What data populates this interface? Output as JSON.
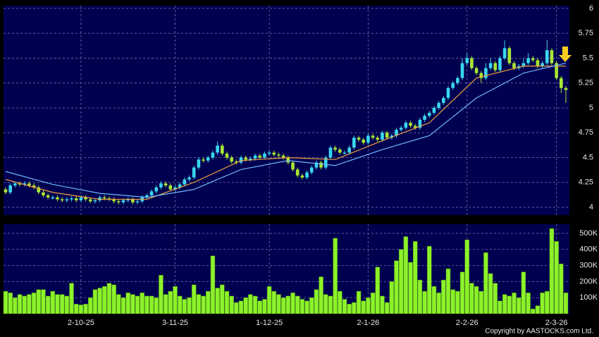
{
  "chart_data": {
    "type": "candlestick",
    "copyright": "Copyright by AASTOCKS.com Ltd.",
    "up_color": "#3ad7f0",
    "down_color": "#a8e832",
    "volume_color": "#8cf22a",
    "grid": true,
    "ylim": [
      4,
      6
    ],
    "yticks": [
      4,
      4.25,
      4.5,
      4.75,
      5,
      5.25,
      5.5,
      5.75,
      6
    ],
    "y2lim": [
      0,
      500000
    ],
    "y2ticks": [
      {
        "value": 100000,
        "label": "100K"
      },
      {
        "value": 200000,
        "label": "200K"
      },
      {
        "value": 300000,
        "label": "300K"
      },
      {
        "value": 400000,
        "label": "400K"
      },
      {
        "value": 500000,
        "label": "500K"
      }
    ],
    "xlim": [
      0,
      119
    ],
    "xticks": [
      {
        "value": 16,
        "label": "2-10-25"
      },
      {
        "value": 36,
        "label": "3-11-25"
      },
      {
        "value": 56,
        "label": "1-12-25"
      },
      {
        "value": 77,
        "label": "2-1-26"
      },
      {
        "value": 98,
        "label": "2-2-26"
      },
      {
        "value": 117,
        "label": "2-3-26"
      }
    ],
    "open": [
      4.18,
      4.15,
      4.22,
      4.24,
      4.23,
      4.24,
      4.22,
      4.2,
      4.15,
      4.12,
      4.1,
      4.1,
      4.08,
      4.07,
      4.08,
      4.09,
      4.07,
      4.1,
      4.08,
      4.06,
      4.07,
      4.1,
      4.09,
      4.08,
      4.06,
      4.05,
      4.07,
      4.08,
      4.05,
      4.06,
      4.1,
      4.12,
      4.16,
      4.2,
      4.24,
      4.22,
      4.18,
      4.2,
      4.23,
      4.28,
      4.3,
      4.4,
      4.48,
      4.47,
      4.5,
      4.55,
      4.62,
      4.54,
      4.5,
      4.46,
      4.45,
      4.5,
      4.48,
      4.49,
      4.52,
      4.5,
      4.54,
      4.55,
      4.53,
      4.52,
      4.5,
      4.45,
      4.38,
      4.32,
      4.3,
      4.35,
      4.4,
      4.45,
      4.4,
      4.5,
      4.6,
      4.58,
      4.55,
      4.55,
      4.6,
      4.7,
      4.68,
      4.65,
      4.72,
      4.7,
      4.68,
      4.75,
      4.7,
      4.72,
      4.78,
      4.8,
      4.85,
      4.82,
      4.8,
      4.88,
      4.92,
      4.95,
      5.0,
      5.05,
      5.1,
      5.2,
      5.25,
      5.3,
      5.45,
      5.5,
      5.4,
      5.35,
      5.3,
      5.4,
      5.45,
      5.38,
      5.5,
      5.6,
      5.45,
      5.4,
      5.42,
      5.45,
      5.5,
      5.48,
      5.42,
      5.45,
      5.58,
      5.45,
      5.3,
      5.2
    ],
    "high": [
      4.2,
      4.24,
      4.26,
      4.26,
      4.26,
      4.26,
      4.24,
      4.22,
      4.17,
      4.14,
      4.12,
      4.12,
      4.1,
      4.1,
      4.11,
      4.11,
      4.12,
      4.12,
      4.1,
      4.09,
      4.12,
      4.12,
      4.11,
      4.1,
      4.08,
      4.09,
      4.1,
      4.1,
      4.08,
      4.12,
      4.14,
      4.18,
      4.22,
      4.26,
      4.26,
      4.24,
      4.22,
      4.25,
      4.3,
      4.32,
      4.42,
      4.5,
      4.5,
      4.52,
      4.57,
      4.66,
      4.64,
      4.56,
      4.52,
      4.48,
      4.52,
      4.52,
      4.51,
      4.54,
      4.54,
      4.56,
      4.57,
      4.57,
      4.55,
      4.54,
      4.52,
      4.47,
      4.4,
      4.34,
      4.37,
      4.42,
      4.47,
      4.47,
      4.52,
      4.62,
      4.62,
      4.6,
      4.57,
      4.62,
      4.72,
      4.72,
      4.7,
      4.74,
      4.74,
      4.72,
      4.77,
      4.77,
      4.74,
      4.8,
      4.82,
      4.87,
      4.87,
      4.84,
      4.9,
      4.94,
      4.97,
      5.02,
      5.07,
      5.12,
      5.22,
      5.27,
      5.32,
      5.5,
      5.55,
      5.52,
      5.42,
      5.37,
      5.45,
      5.5,
      5.47,
      5.52,
      5.68,
      5.62,
      5.47,
      5.44,
      5.5,
      5.55,
      5.52,
      5.5,
      5.47,
      5.68,
      5.6,
      5.47,
      5.32,
      5.22
    ],
    "low": [
      4.13,
      4.13,
      4.2,
      4.21,
      4.21,
      4.2,
      4.18,
      4.13,
      4.1,
      4.08,
      4.08,
      4.06,
      4.05,
      4.05,
      4.06,
      4.05,
      4.05,
      4.06,
      4.04,
      4.04,
      4.05,
      4.07,
      4.06,
      4.04,
      4.03,
      4.03,
      4.05,
      4.03,
      4.03,
      4.04,
      4.08,
      4.1,
      4.14,
      4.18,
      4.2,
      4.16,
      4.16,
      4.18,
      4.21,
      4.26,
      4.28,
      4.38,
      4.45,
      4.45,
      4.48,
      4.53,
      4.52,
      4.48,
      4.44,
      4.43,
      4.43,
      4.46,
      4.46,
      4.47,
      4.48,
      4.48,
      4.52,
      4.51,
      4.5,
      4.48,
      4.43,
      4.36,
      4.3,
      4.28,
      4.28,
      4.33,
      4.38,
      4.38,
      4.38,
      4.48,
      4.56,
      4.53,
      4.53,
      4.53,
      4.58,
      4.66,
      4.63,
      4.63,
      4.68,
      4.66,
      4.66,
      4.68,
      4.68,
      4.7,
      4.76,
      4.78,
      4.8,
      4.78,
      4.78,
      4.86,
      4.9,
      4.93,
      4.98,
      5.03,
      5.08,
      5.18,
      5.23,
      5.28,
      5.43,
      5.38,
      5.33,
      5.25,
      5.28,
      5.38,
      5.36,
      5.36,
      5.48,
      5.43,
      5.38,
      5.38,
      5.4,
      5.43,
      5.46,
      5.4,
      5.4,
      5.43,
      5.43,
      5.28,
      5.15,
      5.05
    ],
    "close": [
      4.15,
      4.22,
      4.24,
      4.23,
      4.24,
      4.22,
      4.2,
      4.15,
      4.12,
      4.1,
      4.1,
      4.08,
      4.07,
      4.08,
      4.09,
      4.07,
      4.1,
      4.08,
      4.06,
      4.07,
      4.1,
      4.09,
      4.08,
      4.06,
      4.05,
      4.07,
      4.08,
      4.05,
      4.06,
      4.1,
      4.12,
      4.16,
      4.2,
      4.24,
      4.22,
      4.18,
      4.2,
      4.23,
      4.28,
      4.3,
      4.4,
      4.48,
      4.47,
      4.5,
      4.55,
      4.62,
      4.54,
      4.5,
      4.46,
      4.45,
      4.5,
      4.48,
      4.49,
      4.52,
      4.5,
      4.54,
      4.55,
      4.53,
      4.52,
      4.5,
      4.45,
      4.38,
      4.32,
      4.3,
      4.35,
      4.4,
      4.45,
      4.4,
      4.5,
      4.6,
      4.58,
      4.55,
      4.55,
      4.6,
      4.7,
      4.68,
      4.65,
      4.72,
      4.7,
      4.68,
      4.75,
      4.7,
      4.72,
      4.78,
      4.8,
      4.85,
      4.82,
      4.8,
      4.88,
      4.92,
      4.95,
      5.0,
      5.05,
      5.1,
      5.2,
      5.25,
      5.3,
      5.45,
      5.5,
      5.4,
      5.35,
      5.3,
      5.4,
      5.45,
      5.38,
      5.5,
      5.6,
      5.45,
      5.4,
      5.42,
      5.45,
      5.5,
      5.48,
      5.42,
      5.45,
      5.58,
      5.45,
      5.3,
      5.2,
      5.18
    ],
    "volume": [
      140000,
      130000,
      100000,
      120000,
      110000,
      120000,
      130000,
      150000,
      150000,
      110000,
      140000,
      120000,
      120000,
      110000,
      190000,
      60000,
      55000,
      60000,
      100000,
      150000,
      160000,
      170000,
      190000,
      180000,
      120000,
      100000,
      130000,
      120000,
      110000,
      130000,
      110000,
      110000,
      100000,
      240000,
      120000,
      140000,
      170000,
      110000,
      90000,
      100000,
      180000,
      120000,
      110000,
      140000,
      360000,
      160000,
      180000,
      140000,
      110000,
      70000,
      80000,
      100000,
      120000,
      110000,
      80000,
      90000,
      170000,
      140000,
      120000,
      100000,
      110000,
      130000,
      110000,
      90000,
      80000,
      100000,
      150000,
      230000,
      120000,
      110000,
      470000,
      140000,
      90000,
      60000,
      70000,
      140000,
      80000,
      100000,
      130000,
      290000,
      110000,
      70000,
      200000,
      330000,
      400000,
      480000,
      320000,
      450000,
      210000,
      140000,
      420000,
      170000,
      130000,
      210000,
      280000,
      150000,
      140000,
      260000,
      460000,
      190000,
      170000,
      140000,
      380000,
      250000,
      190000,
      80000,
      120000,
      110000,
      130000,
      100000,
      260000,
      130000,
      30000,
      50000,
      130000,
      140000,
      530000,
      450000,
      310000,
      130000
    ],
    "moving_averages": [
      {
        "color": "#f0a040",
        "x": [
          0,
          10,
          20,
          30,
          40,
          50,
          60,
          70,
          80,
          90,
          100,
          110,
          119
        ],
        "values": [
          4.28,
          4.15,
          4.08,
          4.08,
          4.25,
          4.47,
          4.5,
          4.48,
          4.67,
          4.85,
          5.3,
          5.42,
          5.42
        ]
      },
      {
        "color": "#70b8ff",
        "x": [
          0,
          10,
          20,
          30,
          40,
          50,
          60,
          70,
          80,
          90,
          100,
          110,
          119
        ],
        "values": [
          4.36,
          4.23,
          4.14,
          4.1,
          4.18,
          4.38,
          4.47,
          4.42,
          4.58,
          4.72,
          5.1,
          5.35,
          5.45
        ]
      }
    ]
  }
}
